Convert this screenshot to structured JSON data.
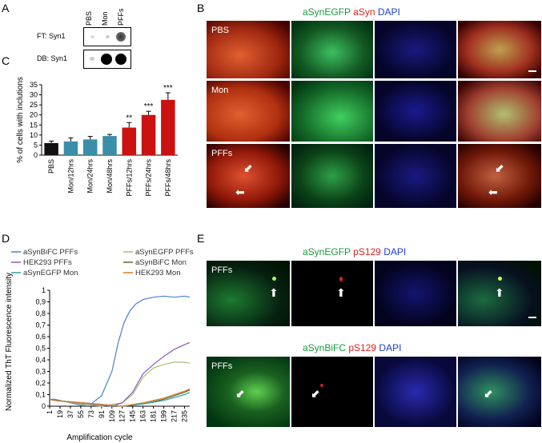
{
  "panels": {
    "A": "A",
    "B": "B",
    "C": "C",
    "D": "D",
    "E": "E"
  },
  "panelA": {
    "lanes": [
      "PBS",
      "Mon",
      "PFFs"
    ],
    "rows": [
      "FT: Syn1",
      "DB: Syn1"
    ]
  },
  "panelB": {
    "header": {
      "g": "aSynEGFP",
      "r": "aSyn",
      "b": "DAPI"
    },
    "rows": [
      "PBS",
      "Mon",
      "PFFs"
    ],
    "colors": {
      "green": "#1a9a3c",
      "red": "#e02020",
      "blue": "#2040d0"
    }
  },
  "panelE": {
    "header1": {
      "g": "aSynEGFP",
      "r": "pS129",
      "b": "DAPI"
    },
    "header2": {
      "g": "aSynBiFC",
      "r": "pS129",
      "b": "DAPI"
    },
    "rows": [
      "PFFs",
      "PFFs"
    ]
  },
  "chart_data": [
    {
      "type": "bar",
      "ylabel": "% of cells with inclutions",
      "categories": [
        "PBS",
        "Mon/12hrs",
        "Mon/24hrs",
        "Mon/48hrs",
        "PFFs/12hrs",
        "PFFs/24hrs",
        "PFFs/48hrs"
      ],
      "values": [
        6,
        6.8,
        7.8,
        9.5,
        13.7,
        20,
        27.5
      ],
      "errors": [
        1,
        1.8,
        1.5,
        0.8,
        2.5,
        1.8,
        3.5
      ],
      "significance": [
        "",
        "",
        "",
        "",
        "**",
        "***",
        "***"
      ],
      "colors": [
        "#111111",
        "#3a8ea8",
        "#3a8ea8",
        "#3a8ea8",
        "#cc1111",
        "#cc1111",
        "#cc1111"
      ],
      "ylim": [
        0,
        35
      ],
      "yticks": [
        "0",
        "5",
        "10",
        "15",
        "20",
        "25",
        "30",
        "35"
      ]
    },
    {
      "type": "line",
      "xlabel": "Amplification cycle",
      "ylabel": "Normalized ThT Fluorescence intensity",
      "ylim": [
        0,
        1
      ],
      "yticks": [
        "0",
        "0,1",
        "0,2",
        "0,3",
        "0,4",
        "0,5",
        "0,6",
        "0,7",
        "0,8",
        "0,9",
        "1"
      ],
      "xticks": [
        "1",
        "19",
        "37",
        "55",
        "73",
        "91",
        "109",
        "127",
        "145",
        "163",
        "181",
        "199",
        "217",
        "235"
      ],
      "legend_position": "top",
      "series": [
        {
          "name": "aSynBiFC PFFs",
          "color": "#4a7fc8",
          "points": [
            [
              1,
              0.06
            ],
            [
              10,
              0.06
            ],
            [
              55,
              0.01
            ],
            [
              73,
              0.02
            ],
            [
              91,
              0.09
            ],
            [
              109,
              0.3
            ],
            [
              120,
              0.55
            ],
            [
              130,
              0.72
            ],
            [
              140,
              0.82
            ],
            [
              150,
              0.88
            ],
            [
              163,
              0.92
            ],
            [
              181,
              0.94
            ],
            [
              199,
              0.95
            ],
            [
              217,
              0.94
            ],
            [
              235,
              0.95
            ],
            [
              244,
              0.94
            ]
          ]
        },
        {
          "name": "aSynEGFP PFFs",
          "color": "#a8c070",
          "points": [
            [
              1,
              0.06
            ],
            [
              10,
              0.05
            ],
            [
              91,
              0.0
            ],
            [
              127,
              0.03
            ],
            [
              145,
              0.1
            ],
            [
              163,
              0.25
            ],
            [
              181,
              0.33
            ],
            [
              199,
              0.36
            ],
            [
              217,
              0.38
            ],
            [
              235,
              0.38
            ],
            [
              244,
              0.37
            ]
          ]
        },
        {
          "name": "HEK293 PFFs",
          "color": "#8a5ab8",
          "points": [
            [
              1,
              0.06
            ],
            [
              10,
              0.05
            ],
            [
              109,
              0.0
            ],
            [
              127,
              0.03
            ],
            [
              145,
              0.12
            ],
            [
              163,
              0.28
            ],
            [
              181,
              0.36
            ],
            [
              199,
              0.43
            ],
            [
              217,
              0.49
            ],
            [
              235,
              0.53
            ],
            [
              244,
              0.55
            ]
          ]
        },
        {
          "name": "aSynBiFC Mon",
          "color": "#556b2f",
          "points": [
            [
              1,
              0.06
            ],
            [
              10,
              0.05
            ],
            [
              127,
              0.0
            ],
            [
              163,
              0.02
            ],
            [
              199,
              0.06
            ],
            [
              235,
              0.12
            ],
            [
              244,
              0.14
            ]
          ]
        },
        {
          "name": "aSynEGFP Mon",
          "color": "#2aa0b0",
          "points": [
            [
              1,
              0.06
            ],
            [
              10,
              0.05
            ],
            [
              127,
              0.0
            ],
            [
              163,
              0.02
            ],
            [
              199,
              0.05
            ],
            [
              235,
              0.1
            ],
            [
              244,
              0.12
            ]
          ]
        },
        {
          "name": "HEK293 Mon",
          "color": "#e07820",
          "points": [
            [
              1,
              0.06
            ],
            [
              10,
              0.05
            ],
            [
              127,
              0.0
            ],
            [
              163,
              0.03
            ],
            [
              199,
              0.07
            ],
            [
              235,
              0.13
            ],
            [
              244,
              0.15
            ]
          ]
        }
      ]
    }
  ]
}
